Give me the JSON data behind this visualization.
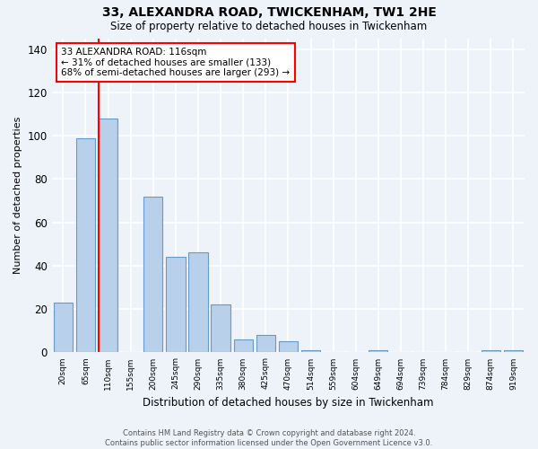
{
  "title1": "33, ALEXANDRA ROAD, TWICKENHAM, TW1 2HE",
  "title2": "Size of property relative to detached houses in Twickenham",
  "xlabel": "Distribution of detached houses by size in Twickenham",
  "ylabel": "Number of detached properties",
  "bar_labels": [
    "20sqm",
    "65sqm",
    "110sqm",
    "155sqm",
    "200sqm",
    "245sqm",
    "290sqm",
    "335sqm",
    "380sqm",
    "425sqm",
    "470sqm",
    "514sqm",
    "559sqm",
    "604sqm",
    "649sqm",
    "694sqm",
    "739sqm",
    "784sqm",
    "829sqm",
    "874sqm",
    "919sqm"
  ],
  "bar_values": [
    23,
    99,
    108,
    0,
    72,
    44,
    46,
    22,
    6,
    8,
    5,
    1,
    0,
    0,
    1,
    0,
    0,
    0,
    0,
    1,
    1
  ],
  "bar_color": "#b8d0ea",
  "bar_edge_color": "#6699cc",
  "annotation_line1": "33 ALEXANDRA ROAD: 116sqm",
  "annotation_line2": "← 31% of detached houses are smaller (133)",
  "annotation_line3": "68% of semi-detached houses are larger (293) →",
  "vline_color": "red",
  "ylim": [
    0,
    145
  ],
  "yticks": [
    0,
    20,
    40,
    60,
    80,
    100,
    120,
    140
  ],
  "footer_line1": "Contains HM Land Registry data © Crown copyright and database right 2024.",
  "footer_line2": "Contains public sector information licensed under the Open Government Licence v3.0.",
  "bg_color": "#eef2f9",
  "grid_color": "white",
  "vline_xindex": 2.0
}
